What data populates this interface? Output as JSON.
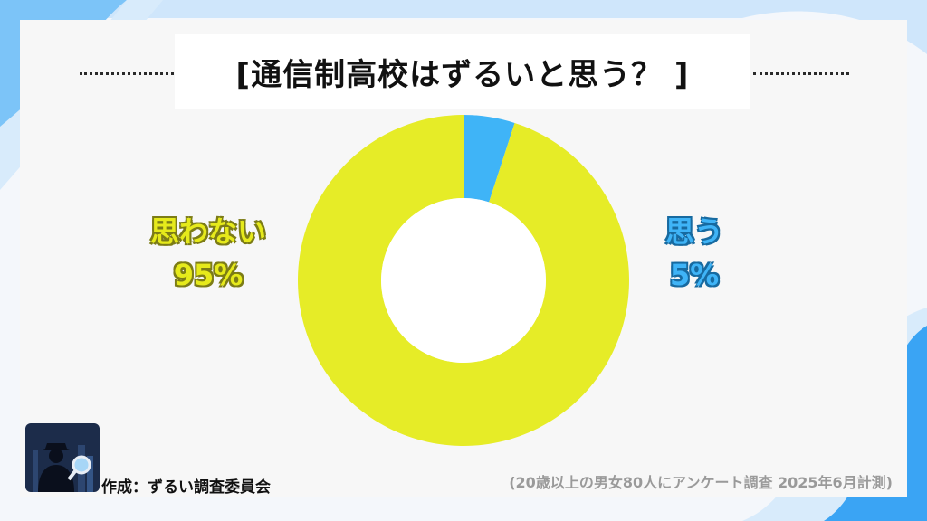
{
  "title": "[通信制高校はずるいと思う？ ]",
  "chart_data": {
    "type": "pie",
    "title": "[通信制高校はずるいと思う？ ]",
    "labels": [
      "思う",
      "思わない"
    ],
    "values": [
      5,
      95
    ],
    "value_labels": [
      "5%",
      "95%"
    ],
    "colors": [
      "#3fb4f7",
      "#e6ec27"
    ],
    "style": "donut"
  },
  "labels": {
    "left": {
      "name": "思わない",
      "value": "95%"
    },
    "right": {
      "name": "思う",
      "value": "5%"
    }
  },
  "footer": {
    "credit": "作成：ずるい調査委員会",
    "source": "(20歳以上の男女80人にアンケート調査 2025年6月計測)"
  }
}
